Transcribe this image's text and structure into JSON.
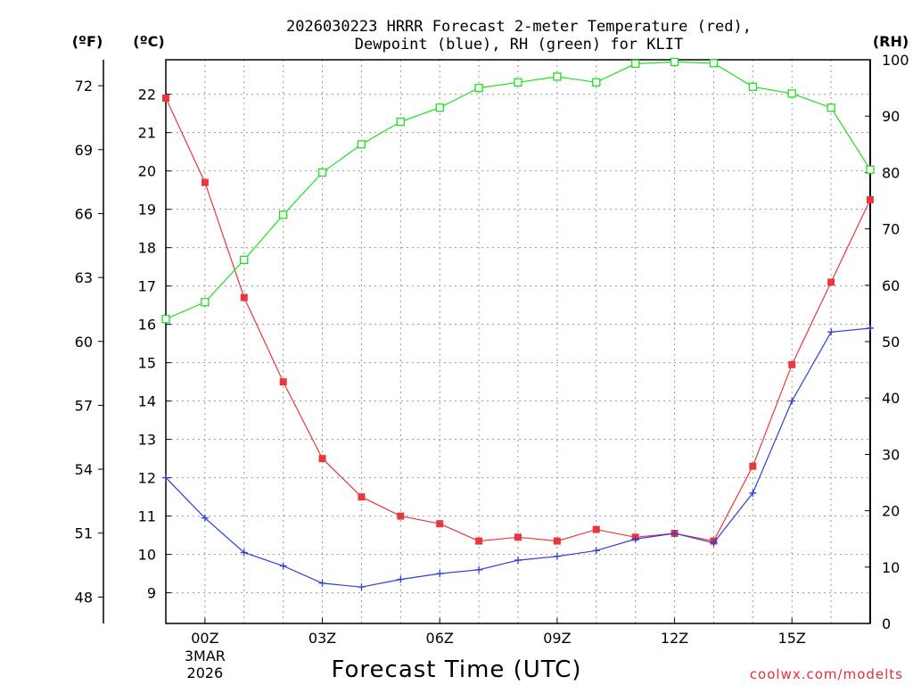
{
  "chart_data": {
    "type": "line",
    "title": "2026030223 HRRR Forecast 2-meter Temperature (red),",
    "subtitle": "Dewpoint (blue), RH (green) for KLIT",
    "xlabel": "Forecast Time (UTC)",
    "credit": "coolwx.com/modelts",
    "units": {
      "fahrenheit": "(ºF)",
      "celsius": "(ºC)",
      "rh": "(RH)"
    },
    "x_hours": [
      -1,
      0,
      1,
      2,
      3,
      4,
      5,
      6,
      7,
      8,
      9,
      10,
      11,
      12,
      13,
      14,
      15,
      16,
      17
    ],
    "x_range": [
      -1,
      17
    ],
    "x_ticks": [
      {
        "hour": 0,
        "label": "00Z",
        "sub1": "3MAR",
        "sub2": "2026"
      },
      {
        "hour": 3,
        "label": "03Z"
      },
      {
        "hour": 6,
        "label": "06Z"
      },
      {
        "hour": 9,
        "label": "09Z"
      },
      {
        "hour": 12,
        "label": "12Z"
      },
      {
        "hour": 15,
        "label": "15Z"
      }
    ],
    "celsius_range": [
      8.2,
      22.9
    ],
    "celsius_ticks": [
      "9",
      "10",
      "11",
      "12",
      "13",
      "14",
      "15",
      "16",
      "17",
      "18",
      "19",
      "20",
      "21",
      "22"
    ],
    "fahrenheit_ticks": [
      "48",
      "51",
      "54",
      "57",
      "60",
      "63",
      "66",
      "69",
      "72"
    ],
    "rh_range": [
      0,
      100
    ],
    "rh_ticks": [
      "0",
      "10",
      "20",
      "30",
      "40",
      "50",
      "60",
      "70",
      "80",
      "90",
      "100"
    ],
    "series": [
      {
        "name": "Temperature",
        "axis": "celsius",
        "color": "#e8383e",
        "marker": "filled-square",
        "values": [
          21.9,
          19.7,
          16.7,
          14.5,
          12.5,
          11.5,
          11.0,
          10.8,
          10.35,
          10.45,
          10.35,
          10.65,
          10.45,
          10.55,
          10.35,
          12.3,
          14.95,
          17.1,
          19.25
        ]
      },
      {
        "name": "Dewpoint",
        "axis": "celsius",
        "color": "#2b3fd8",
        "marker": "plus",
        "values": [
          12.0,
          10.95,
          10.05,
          9.7,
          9.25,
          9.15,
          9.35,
          9.5,
          9.6,
          9.85,
          9.95,
          10.1,
          10.4,
          10.55,
          10.3,
          11.6,
          14.0,
          15.8,
          15.9
        ]
      },
      {
        "name": "RH",
        "axis": "rh",
        "color": "#22dd22",
        "marker": "open-square",
        "values": [
          54,
          57,
          64.5,
          72.5,
          80,
          85,
          89,
          91.5,
          95,
          96,
          97,
          96,
          99.3,
          99.6,
          99.4,
          95.2,
          94,
          91.5,
          80.5
        ]
      }
    ]
  }
}
